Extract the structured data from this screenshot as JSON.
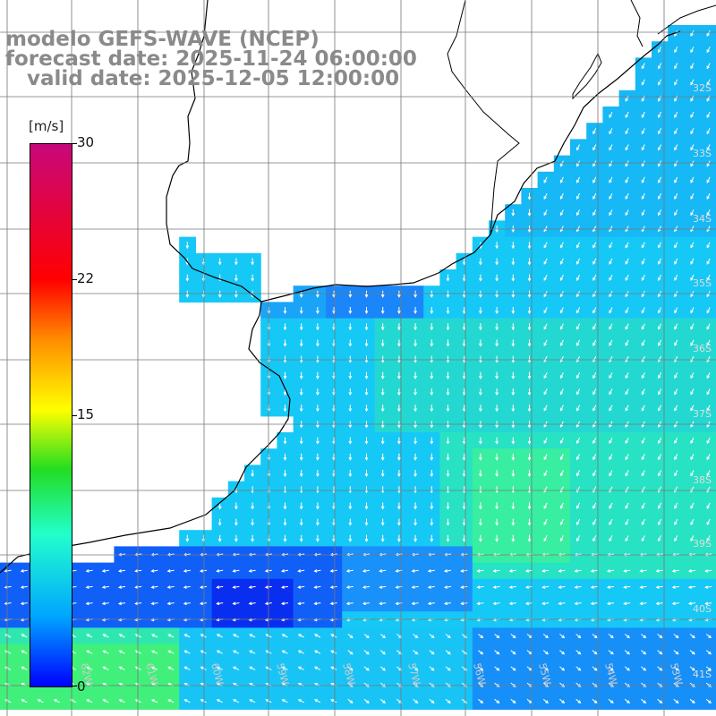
{
  "title": {
    "line1": "modelo GEFS-WAVE (NCEP)",
    "line2": "forecast date: 2025-11-24 06:00:00",
    "line3": "   valid date: 2025-12-05 12:00:00"
  },
  "legend": {
    "unit": "[m/s]",
    "ticks": [
      "30",
      "22",
      "15",
      "0"
    ],
    "min": 0,
    "max": 30
  },
  "lat_labels": [
    "32S",
    "33S",
    "34S",
    "35S",
    "36S",
    "37S",
    "38S",
    "39S",
    "40S",
    "41S"
  ],
  "lon_labels": [
    "62W",
    "61W",
    "60W",
    "59W",
    "58W",
    "57W",
    "56W",
    "55W",
    "54W",
    "53W"
  ],
  "colors": {
    "land": "#ffffff",
    "coast": "#000000",
    "grid": "#777777",
    "arrow": "#ffffff",
    "title": "#8a8a8a"
  }
}
